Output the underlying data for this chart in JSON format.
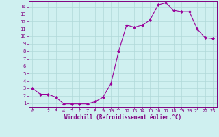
{
  "x": [
    0,
    1,
    2,
    3,
    4,
    5,
    6,
    7,
    8,
    9,
    10,
    11,
    12,
    13,
    14,
    15,
    16,
    17,
    18,
    19,
    20,
    21,
    22,
    23
  ],
  "y": [
    3.0,
    2.2,
    2.2,
    1.8,
    0.9,
    0.9,
    0.9,
    0.9,
    1.2,
    1.8,
    3.6,
    8.0,
    11.5,
    11.2,
    11.5,
    12.2,
    14.2,
    14.5,
    13.5,
    13.3,
    13.3,
    11.0,
    9.8,
    9.7
  ],
  "line_color": "#990099",
  "marker": "D",
  "marker_size": 2.0,
  "bg_color": "#cff0f0",
  "grid_color": "#b0d8d8",
  "xlabel": "Windchill (Refroidissement éolien,°C)",
  "yticks": [
    1,
    2,
    3,
    4,
    5,
    6,
    7,
    8,
    9,
    10,
    11,
    12,
    13,
    14
  ],
  "xticks": [
    0,
    2,
    3,
    4,
    5,
    6,
    7,
    8,
    9,
    10,
    11,
    12,
    13,
    14,
    15,
    16,
    17,
    18,
    19,
    20,
    21,
    22,
    23
  ],
  "ylim": [
    0.5,
    14.7
  ],
  "xlim": [
    -0.5,
    23.5
  ],
  "tick_color": "#800080",
  "axis_color": "#800080",
  "label_fontsize": 5.5,
  "tick_fontsize": 5.0,
  "xlabel_fontsize": 5.5
}
